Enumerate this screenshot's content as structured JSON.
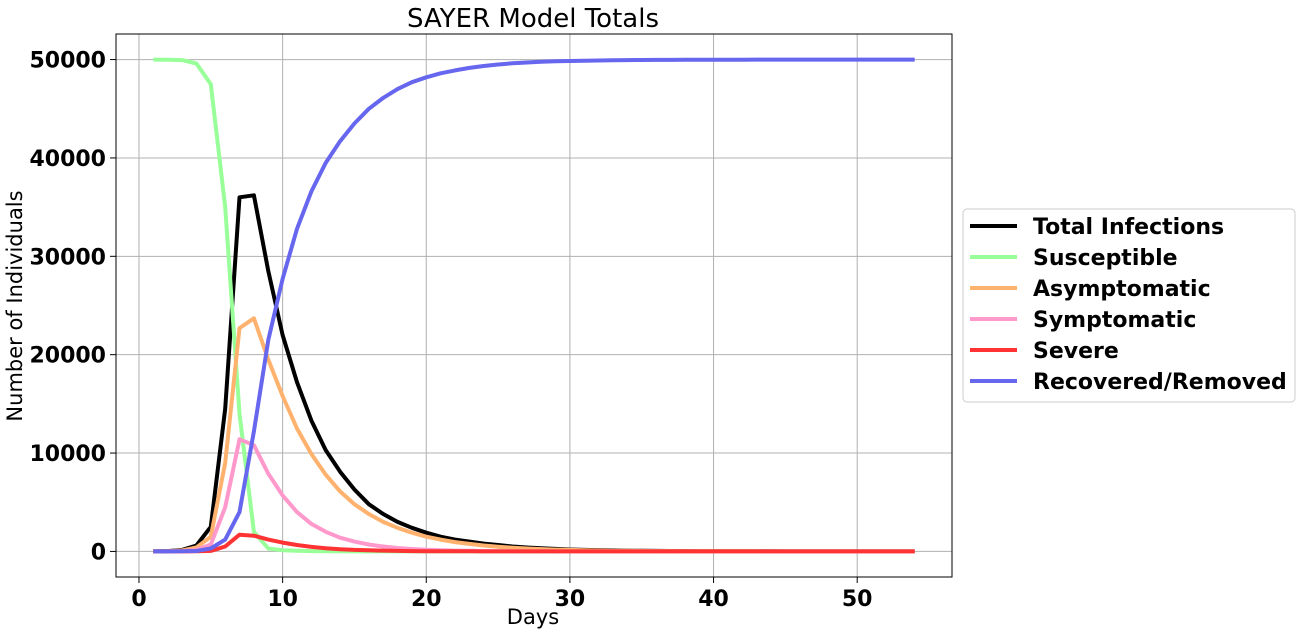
{
  "chart_data": {
    "type": "line",
    "title": "SAYER Model Totals",
    "xlabel": "Days",
    "ylabel": "Number of Individuals",
    "xlim": [
      -1.6,
      56.6
    ],
    "ylim": [
      -2600,
      52600
    ],
    "xticks": [
      0,
      10,
      20,
      30,
      40,
      50
    ],
    "yticks": [
      0,
      10000,
      20000,
      30000,
      40000,
      50000
    ],
    "grid": true,
    "legend_position": "right, outside plot",
    "x": [
      1,
      2,
      3,
      4,
      5,
      6,
      7,
      8,
      9,
      10,
      11,
      12,
      13,
      14,
      15,
      16,
      17,
      18,
      19,
      20,
      21,
      22,
      23,
      24,
      25,
      26,
      27,
      28,
      29,
      30,
      31,
      32,
      33,
      34,
      35,
      36,
      37,
      38,
      39,
      40,
      41,
      42,
      43,
      44,
      45,
      46,
      47,
      48,
      49,
      50,
      51,
      52,
      53,
      54
    ],
    "series": [
      {
        "name": "Total Infections",
        "color": "#000000",
        "values": [
          0,
          30,
          150,
          600,
          2500,
          14500,
          36000,
          36200,
          28500,
          22000,
          17200,
          13300,
          10300,
          8100,
          6300,
          4800,
          3800,
          3000,
          2400,
          1900,
          1500,
          1200,
          1000,
          800,
          650,
          500,
          400,
          320,
          260,
          200,
          160,
          130,
          100,
          80,
          65,
          50,
          40,
          30,
          25,
          20,
          15,
          12,
          10,
          8,
          6,
          5,
          4,
          3,
          2,
          2,
          1,
          1,
          1,
          0
        ]
      },
      {
        "name": "Susceptible",
        "color": "#99ff99",
        "values": [
          50000,
          49990,
          49950,
          49600,
          47500,
          35000,
          14000,
          2000,
          300,
          120,
          60,
          30,
          20,
          10,
          5,
          3,
          2,
          1,
          1,
          0,
          0,
          0,
          0,
          0,
          0,
          0,
          0,
          0,
          0,
          0,
          0,
          0,
          0,
          0,
          0,
          0,
          0,
          0,
          0,
          0,
          0,
          0,
          0,
          0,
          0,
          0,
          0,
          0,
          0,
          0,
          0,
          0,
          0,
          0
        ]
      },
      {
        "name": "Asymptomatic",
        "color": "#ffb26e",
        "values": [
          0,
          20,
          100,
          400,
          1500,
          9000,
          22700,
          23700,
          19500,
          15800,
          12500,
          9900,
          7800,
          6100,
          4800,
          3800,
          3000,
          2400,
          1900,
          1500,
          1200,
          950,
          760,
          600,
          480,
          380,
          300,
          240,
          190,
          150,
          120,
          95,
          75,
          60,
          48,
          38,
          30,
          24,
          19,
          15,
          12,
          10,
          8,
          6,
          5,
          4,
          3,
          2,
          2,
          1,
          1,
          1,
          0,
          0
        ]
      },
      {
        "name": "Symptomatic",
        "color": "#ff99cc",
        "values": [
          0,
          5,
          30,
          150,
          700,
          4500,
          11400,
          10800,
          7900,
          5700,
          4000,
          2800,
          2000,
          1400,
          1000,
          700,
          500,
          350,
          250,
          170,
          120,
          85,
          60,
          42,
          30,
          21,
          15,
          10,
          7,
          5,
          4,
          3,
          2,
          1,
          1,
          1,
          0,
          0,
          0,
          0,
          0,
          0,
          0,
          0,
          0,
          0,
          0,
          0,
          0,
          0,
          0,
          0,
          0,
          0
        ]
      },
      {
        "name": "Severe",
        "color": "#ff3333",
        "values": [
          0,
          0,
          2,
          10,
          50,
          500,
          1700,
          1600,
          1200,
          900,
          650,
          460,
          330,
          230,
          160,
          110,
          80,
          55,
          38,
          26,
          18,
          12,
          8,
          6,
          4,
          3,
          2,
          1,
          1,
          1,
          0,
          0,
          0,
          0,
          0,
          0,
          0,
          0,
          0,
          0,
          0,
          0,
          0,
          0,
          0,
          0,
          0,
          0,
          0,
          0,
          0,
          0,
          0,
          0
        ]
      },
      {
        "name": "Recovered/Removed",
        "color": "#6666ee",
        "values": [
          0,
          0,
          10,
          40,
          300,
          1200,
          4000,
          12200,
          21500,
          27700,
          32800,
          36600,
          39500,
          41700,
          43500,
          45000,
          46100,
          47000,
          47700,
          48200,
          48600,
          48900,
          49150,
          49350,
          49500,
          49620,
          49700,
          49770,
          49820,
          49860,
          49890,
          49910,
          49930,
          49945,
          49955,
          49965,
          49972,
          49978,
          49982,
          49986,
          49989,
          49991,
          49993,
          49995,
          49996,
          49997,
          49998,
          49998,
          49999,
          49999,
          50000,
          50000,
          50000,
          50000
        ]
      }
    ]
  }
}
